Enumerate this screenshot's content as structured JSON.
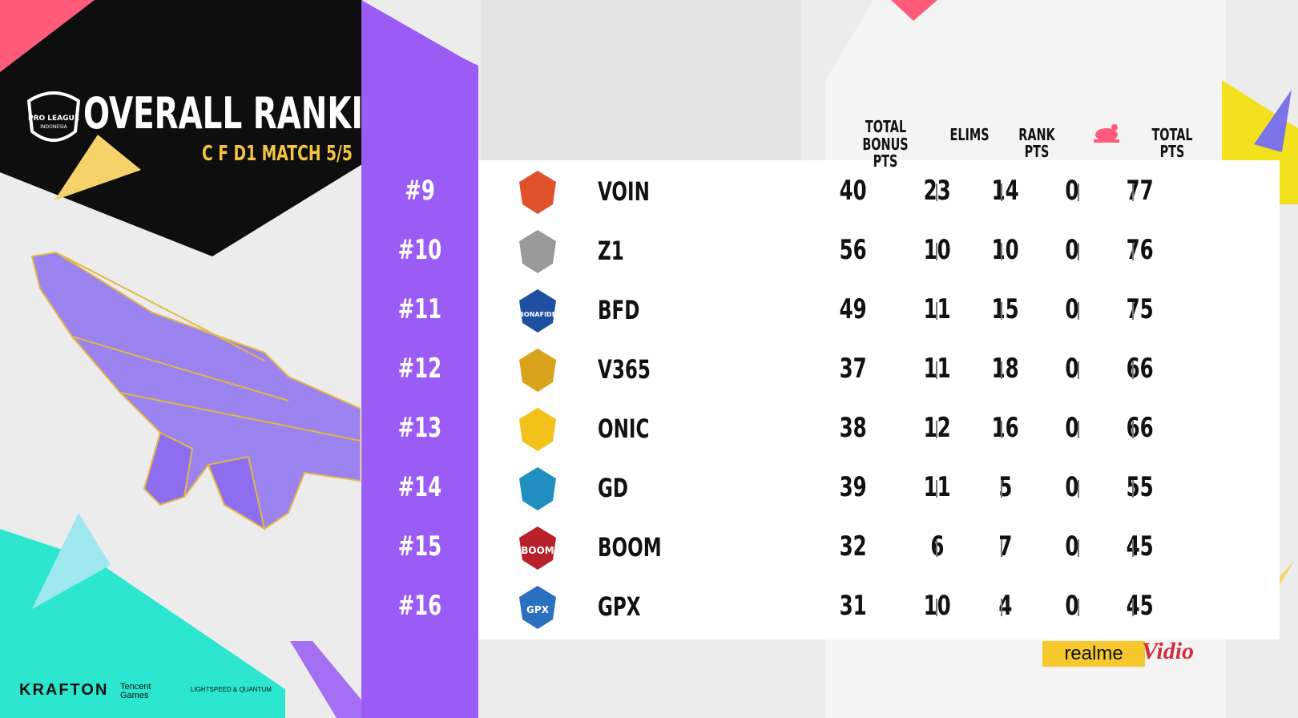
{
  "header": {
    "title": "OVERALL RANKINGS",
    "subtitle": "C F D1 MATCH 5/5",
    "logo_text": [
      "PRO LEAGUE",
      "INDONESIA"
    ]
  },
  "columns": {
    "bonus_line1": "TOTAL",
    "bonus_line2": "BONUS PTS",
    "elims": "ELIMS",
    "rank_pts": "RANK PTS",
    "chicken_icon": "chicken-icon",
    "total_pts": "TOTAL PTS"
  },
  "rows": [
    {
      "rank": "#9",
      "team": "VOIN",
      "bonus": "40",
      "elims": "23",
      "rank_pts": "14",
      "chicken": "0",
      "total": "77",
      "logo_color": "#e0532a"
    },
    {
      "rank": "#10",
      "team": "Z1",
      "bonus": "56",
      "elims": "10",
      "rank_pts": "10",
      "chicken": "0",
      "total": "76",
      "logo_color": "#9a9a9a"
    },
    {
      "rank": "#11",
      "team": "BFD",
      "bonus": "49",
      "elims": "11",
      "rank_pts": "15",
      "chicken": "0",
      "total": "75",
      "logo_color": "#1f4fa0",
      "logo_text": "BONAFIDE"
    },
    {
      "rank": "#12",
      "team": "V365",
      "bonus": "37",
      "elims": "11",
      "rank_pts": "18",
      "chicken": "0",
      "total": "66",
      "logo_color": "#d8a21a"
    },
    {
      "rank": "#13",
      "team": "ONIC",
      "bonus": "38",
      "elims": "12",
      "rank_pts": "16",
      "chicken": "0",
      "total": "66",
      "logo_color": "#f2c21a"
    },
    {
      "rank": "#14",
      "team": "GD",
      "bonus": "39",
      "elims": "11",
      "rank_pts": "5",
      "chicken": "0",
      "total": "55",
      "logo_color": "#1f8fc0"
    },
    {
      "rank": "#15",
      "team": "BOOM",
      "bonus": "32",
      "elims": "6",
      "rank_pts": "7",
      "chicken": "0",
      "total": "45",
      "logo_color": "#b8212a",
      "logo_text": "BOOM"
    },
    {
      "rank": "#16",
      "team": "GPX",
      "bonus": "31",
      "elims": "10",
      "rank_pts": "4",
      "chicken": "0",
      "total": "45",
      "logo_color": "#2a6fc0",
      "logo_text": "GPX"
    }
  ],
  "sponsors": {
    "realme": "realme",
    "vidio": "Vidio",
    "krafton": "KRAFTON",
    "tencent": "Tencent Games",
    "lightspeed": "LIGHTSPEED & QUANTUM"
  },
  "colors": {
    "purple": "#9b5cf5",
    "black": "#0e0e0e",
    "gold": "#f3c440",
    "pink": "#ff5a7a",
    "teal": "#2de6cf",
    "yellow": "#f4e11e"
  }
}
